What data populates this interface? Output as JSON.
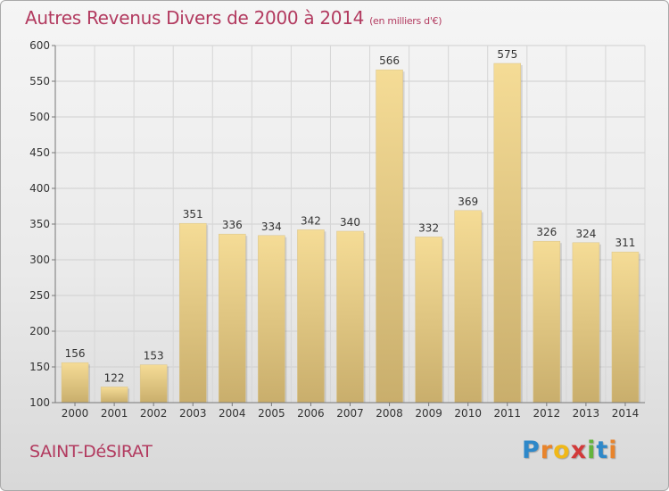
{
  "header": {
    "title": "Autres Revenus Divers de 2000 à 2014",
    "unit": "(en milliers d'€)"
  },
  "footer": {
    "town": "SAINT-DéSIRAT",
    "logo_letters": [
      "P",
      "r",
      "o",
      "x",
      "i",
      "t",
      "i"
    ],
    "logo_colors": [
      "#2e88c9",
      "#e8842c",
      "#f0b818",
      "#d23a3a",
      "#63b43c",
      "#2e88c9",
      "#e8842c"
    ]
  },
  "colors": {
    "title": "#b23a5f",
    "bar_light": "#f5dc96",
    "bar_dark": "#c9ae6c"
  },
  "chart_data": {
    "type": "bar",
    "title": "Autres Revenus Divers de 2000 à 2014",
    "subtitle": "(en milliers d'€)",
    "categories": [
      "2000",
      "2001",
      "2002",
      "2003",
      "2004",
      "2005",
      "2006",
      "2007",
      "2008",
      "2009",
      "2010",
      "2011",
      "2012",
      "2013",
      "2014"
    ],
    "values": [
      156,
      122,
      153,
      351,
      336,
      334,
      342,
      340,
      566,
      332,
      369,
      575,
      326,
      324,
      311
    ],
    "ylim": [
      100,
      600
    ],
    "yticks": [
      100,
      150,
      200,
      250,
      300,
      350,
      400,
      450,
      500,
      550,
      600
    ],
    "grid": true,
    "data_labels": true
  }
}
